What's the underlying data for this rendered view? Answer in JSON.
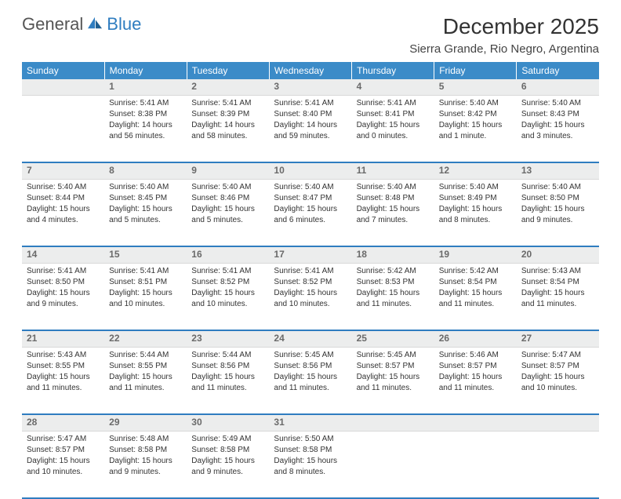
{
  "logo": {
    "general": "General",
    "blue": "Blue"
  },
  "header": {
    "month_title": "December 2025",
    "location": "Sierra Grande, Rio Negro, Argentina"
  },
  "colors": {
    "header_bg": "#3b8bc8",
    "daynum_bg": "#eceded",
    "divider": "#2f7dc0",
    "text": "#333333"
  },
  "daynames": [
    "Sunday",
    "Monday",
    "Tuesday",
    "Wednesday",
    "Thursday",
    "Friday",
    "Saturday"
  ],
  "weeks": [
    {
      "nums": [
        "",
        "1",
        "2",
        "3",
        "4",
        "5",
        "6"
      ],
      "cells": [
        null,
        {
          "sr": "Sunrise: 5:41 AM",
          "ss": "Sunset: 8:38 PM",
          "d1": "Daylight: 14 hours",
          "d2": "and 56 minutes."
        },
        {
          "sr": "Sunrise: 5:41 AM",
          "ss": "Sunset: 8:39 PM",
          "d1": "Daylight: 14 hours",
          "d2": "and 58 minutes."
        },
        {
          "sr": "Sunrise: 5:41 AM",
          "ss": "Sunset: 8:40 PM",
          "d1": "Daylight: 14 hours",
          "d2": "and 59 minutes."
        },
        {
          "sr": "Sunrise: 5:41 AM",
          "ss": "Sunset: 8:41 PM",
          "d1": "Daylight: 15 hours",
          "d2": "and 0 minutes."
        },
        {
          "sr": "Sunrise: 5:40 AM",
          "ss": "Sunset: 8:42 PM",
          "d1": "Daylight: 15 hours",
          "d2": "and 1 minute."
        },
        {
          "sr": "Sunrise: 5:40 AM",
          "ss": "Sunset: 8:43 PM",
          "d1": "Daylight: 15 hours",
          "d2": "and 3 minutes."
        }
      ]
    },
    {
      "nums": [
        "7",
        "8",
        "9",
        "10",
        "11",
        "12",
        "13"
      ],
      "cells": [
        {
          "sr": "Sunrise: 5:40 AM",
          "ss": "Sunset: 8:44 PM",
          "d1": "Daylight: 15 hours",
          "d2": "and 4 minutes."
        },
        {
          "sr": "Sunrise: 5:40 AM",
          "ss": "Sunset: 8:45 PM",
          "d1": "Daylight: 15 hours",
          "d2": "and 5 minutes."
        },
        {
          "sr": "Sunrise: 5:40 AM",
          "ss": "Sunset: 8:46 PM",
          "d1": "Daylight: 15 hours",
          "d2": "and 5 minutes."
        },
        {
          "sr": "Sunrise: 5:40 AM",
          "ss": "Sunset: 8:47 PM",
          "d1": "Daylight: 15 hours",
          "d2": "and 6 minutes."
        },
        {
          "sr": "Sunrise: 5:40 AM",
          "ss": "Sunset: 8:48 PM",
          "d1": "Daylight: 15 hours",
          "d2": "and 7 minutes."
        },
        {
          "sr": "Sunrise: 5:40 AM",
          "ss": "Sunset: 8:49 PM",
          "d1": "Daylight: 15 hours",
          "d2": "and 8 minutes."
        },
        {
          "sr": "Sunrise: 5:40 AM",
          "ss": "Sunset: 8:50 PM",
          "d1": "Daylight: 15 hours",
          "d2": "and 9 minutes."
        }
      ]
    },
    {
      "nums": [
        "14",
        "15",
        "16",
        "17",
        "18",
        "19",
        "20"
      ],
      "cells": [
        {
          "sr": "Sunrise: 5:41 AM",
          "ss": "Sunset: 8:50 PM",
          "d1": "Daylight: 15 hours",
          "d2": "and 9 minutes."
        },
        {
          "sr": "Sunrise: 5:41 AM",
          "ss": "Sunset: 8:51 PM",
          "d1": "Daylight: 15 hours",
          "d2": "and 10 minutes."
        },
        {
          "sr": "Sunrise: 5:41 AM",
          "ss": "Sunset: 8:52 PM",
          "d1": "Daylight: 15 hours",
          "d2": "and 10 minutes."
        },
        {
          "sr": "Sunrise: 5:41 AM",
          "ss": "Sunset: 8:52 PM",
          "d1": "Daylight: 15 hours",
          "d2": "and 10 minutes."
        },
        {
          "sr": "Sunrise: 5:42 AM",
          "ss": "Sunset: 8:53 PM",
          "d1": "Daylight: 15 hours",
          "d2": "and 11 minutes."
        },
        {
          "sr": "Sunrise: 5:42 AM",
          "ss": "Sunset: 8:54 PM",
          "d1": "Daylight: 15 hours",
          "d2": "and 11 minutes."
        },
        {
          "sr": "Sunrise: 5:43 AM",
          "ss": "Sunset: 8:54 PM",
          "d1": "Daylight: 15 hours",
          "d2": "and 11 minutes."
        }
      ]
    },
    {
      "nums": [
        "21",
        "22",
        "23",
        "24",
        "25",
        "26",
        "27"
      ],
      "cells": [
        {
          "sr": "Sunrise: 5:43 AM",
          "ss": "Sunset: 8:55 PM",
          "d1": "Daylight: 15 hours",
          "d2": "and 11 minutes."
        },
        {
          "sr": "Sunrise: 5:44 AM",
          "ss": "Sunset: 8:55 PM",
          "d1": "Daylight: 15 hours",
          "d2": "and 11 minutes."
        },
        {
          "sr": "Sunrise: 5:44 AM",
          "ss": "Sunset: 8:56 PM",
          "d1": "Daylight: 15 hours",
          "d2": "and 11 minutes."
        },
        {
          "sr": "Sunrise: 5:45 AM",
          "ss": "Sunset: 8:56 PM",
          "d1": "Daylight: 15 hours",
          "d2": "and 11 minutes."
        },
        {
          "sr": "Sunrise: 5:45 AM",
          "ss": "Sunset: 8:57 PM",
          "d1": "Daylight: 15 hours",
          "d2": "and 11 minutes."
        },
        {
          "sr": "Sunrise: 5:46 AM",
          "ss": "Sunset: 8:57 PM",
          "d1": "Daylight: 15 hours",
          "d2": "and 11 minutes."
        },
        {
          "sr": "Sunrise: 5:47 AM",
          "ss": "Sunset: 8:57 PM",
          "d1": "Daylight: 15 hours",
          "d2": "and 10 minutes."
        }
      ]
    },
    {
      "nums": [
        "28",
        "29",
        "30",
        "31",
        "",
        "",
        ""
      ],
      "cells": [
        {
          "sr": "Sunrise: 5:47 AM",
          "ss": "Sunset: 8:57 PM",
          "d1": "Daylight: 15 hours",
          "d2": "and 10 minutes."
        },
        {
          "sr": "Sunrise: 5:48 AM",
          "ss": "Sunset: 8:58 PM",
          "d1": "Daylight: 15 hours",
          "d2": "and 9 minutes."
        },
        {
          "sr": "Sunrise: 5:49 AM",
          "ss": "Sunset: 8:58 PM",
          "d1": "Daylight: 15 hours",
          "d2": "and 9 minutes."
        },
        {
          "sr": "Sunrise: 5:50 AM",
          "ss": "Sunset: 8:58 PM",
          "d1": "Daylight: 15 hours",
          "d2": "and 8 minutes."
        },
        null,
        null,
        null
      ]
    }
  ]
}
